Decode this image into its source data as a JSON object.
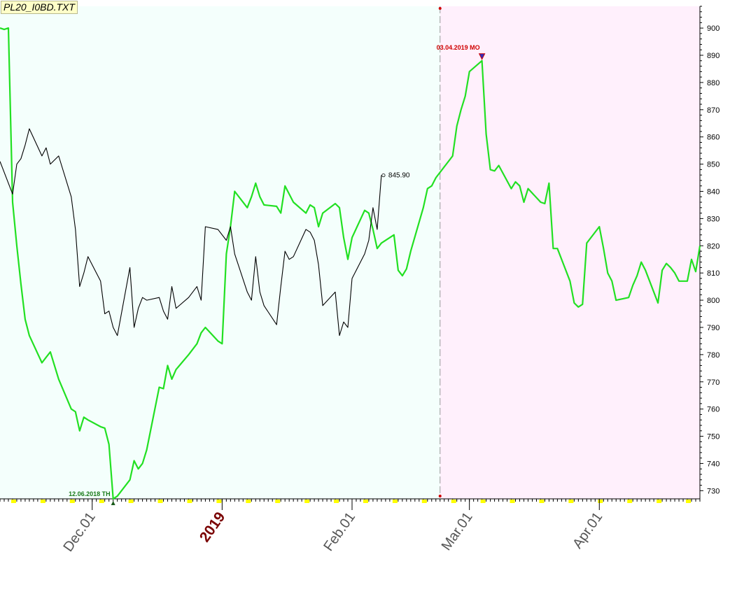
{
  "title": "PL20_I0BD.TXT",
  "colors": {
    "past_bg": "#f4fffc",
    "future_bg": "#fff0fc",
    "forecast_line": "#22e022",
    "price_line": "#000000",
    "marker_red": "#d00000",
    "low_label": "#1a7a1a",
    "year_label": "#7a0000"
  },
  "chart_data": {
    "type": "line",
    "title": "PL20_I0BD.TXT",
    "x_labels": [
      "Dec.01",
      "2019",
      "Feb.01",
      "Mar.01",
      "Apr.01"
    ],
    "ylim": [
      727,
      908
    ],
    "y_ticks": [
      730,
      740,
      750,
      760,
      770,
      780,
      790,
      800,
      810,
      820,
      830,
      840,
      850,
      860,
      870,
      880,
      890,
      900
    ],
    "date_range": [
      "2018-11-09",
      "2019-04-25"
    ],
    "divider_date": "2019-02-22",
    "series": [
      {
        "role": "forecast",
        "points": [
          [
            "2018-11-09",
            900
          ],
          [
            "2018-11-10",
            899.5
          ],
          [
            "2018-11-11",
            900
          ],
          [
            "2018-11-12",
            836
          ],
          [
            "2018-11-13",
            820
          ],
          [
            "2018-11-14",
            806
          ],
          [
            "2018-11-15",
            793
          ],
          [
            "2018-11-16",
            787
          ],
          [
            "2018-11-19",
            777
          ],
          [
            "2018-11-20",
            779
          ],
          [
            "2018-11-21",
            781
          ],
          [
            "2018-11-23",
            771
          ],
          [
            "2018-11-26",
            760
          ],
          [
            "2018-11-27",
            759
          ],
          [
            "2018-11-28",
            752
          ],
          [
            "2018-11-29",
            757
          ],
          [
            "2018-11-30",
            756
          ],
          [
            "2018-12-03",
            753.5
          ],
          [
            "2018-12-04",
            753
          ],
          [
            "2018-12-05",
            747
          ],
          [
            "2018-12-06",
            727
          ],
          [
            "2018-12-07",
            728
          ],
          [
            "2018-12-10",
            734
          ],
          [
            "2018-12-11",
            741
          ],
          [
            "2018-12-12",
            738
          ],
          [
            "2018-12-13",
            740
          ],
          [
            "2018-12-14",
            745
          ],
          [
            "2018-12-17",
            768
          ],
          [
            "2018-12-18",
            767.5
          ],
          [
            "2018-12-19",
            776
          ],
          [
            "2018-12-20",
            771
          ],
          [
            "2018-12-21",
            774.5
          ],
          [
            "2018-12-24",
            780
          ],
          [
            "2018-12-26",
            784
          ],
          [
            "2018-12-27",
            788
          ],
          [
            "2018-12-28",
            790
          ],
          [
            "2018-12-31",
            785
          ],
          [
            "2019-01-01",
            784
          ],
          [
            "2019-01-02",
            817
          ],
          [
            "2019-01-03",
            827
          ],
          [
            "2019-01-04",
            840
          ],
          [
            "2019-01-07",
            834
          ],
          [
            "2019-01-08",
            838
          ],
          [
            "2019-01-09",
            843
          ],
          [
            "2019-01-10",
            838
          ],
          [
            "2019-01-11",
            835
          ],
          [
            "2019-01-14",
            834.5
          ],
          [
            "2019-01-15",
            832
          ],
          [
            "2019-01-16",
            842
          ],
          [
            "2019-01-17",
            839
          ],
          [
            "2019-01-18",
            836
          ],
          [
            "2019-01-21",
            832
          ],
          [
            "2019-01-22",
            835
          ],
          [
            "2019-01-23",
            834
          ],
          [
            "2019-01-24",
            827
          ],
          [
            "2019-01-25",
            832
          ],
          [
            "2019-01-28",
            835.5
          ],
          [
            "2019-01-29",
            834
          ],
          [
            "2019-01-30",
            823
          ],
          [
            "2019-01-31",
            815
          ],
          [
            "2019-02-01",
            823
          ],
          [
            "2019-02-04",
            833
          ],
          [
            "2019-02-05",
            832
          ],
          [
            "2019-02-06",
            826
          ],
          [
            "2019-02-07",
            819
          ],
          [
            "2019-02-08",
            821
          ],
          [
            "2019-02-11",
            824
          ],
          [
            "2019-02-12",
            811
          ],
          [
            "2019-02-13",
            809
          ],
          [
            "2019-02-14",
            811.5
          ],
          [
            "2019-02-15",
            818
          ],
          [
            "2019-02-18",
            834
          ],
          [
            "2019-02-19",
            841
          ],
          [
            "2019-02-20",
            842
          ],
          [
            "2019-02-21",
            845
          ],
          [
            "2019-02-25",
            853
          ],
          [
            "2019-02-26",
            864
          ],
          [
            "2019-02-27",
            870
          ],
          [
            "2019-02-28",
            875
          ],
          [
            "2019-03-01",
            884
          ],
          [
            "2019-03-04",
            888
          ],
          [
            "2019-03-05",
            861
          ],
          [
            "2019-03-06",
            848
          ],
          [
            "2019-03-07",
            847.5
          ],
          [
            "2019-03-08",
            849.5
          ],
          [
            "2019-03-11",
            841
          ],
          [
            "2019-03-12",
            843.5
          ],
          [
            "2019-03-13",
            842
          ],
          [
            "2019-03-14",
            836
          ],
          [
            "2019-03-15",
            841
          ],
          [
            "2019-03-18",
            836
          ],
          [
            "2019-03-19",
            835.5
          ],
          [
            "2019-03-20",
            843
          ],
          [
            "2019-03-21",
            819
          ],
          [
            "2019-03-22",
            819
          ],
          [
            "2019-03-25",
            807
          ],
          [
            "2019-03-26",
            799
          ],
          [
            "2019-03-27",
            797.5
          ],
          [
            "2019-03-28",
            798.5
          ],
          [
            "2019-03-29",
            821
          ],
          [
            "2019-04-01",
            827
          ],
          [
            "2019-04-02",
            819
          ],
          [
            "2019-04-03",
            810
          ],
          [
            "2019-04-04",
            807
          ],
          [
            "2019-04-05",
            800
          ],
          [
            "2019-04-08",
            801
          ],
          [
            "2019-04-09",
            805.5
          ],
          [
            "2019-04-10",
            809
          ],
          [
            "2019-04-11",
            814
          ],
          [
            "2019-04-12",
            811
          ],
          [
            "2019-04-15",
            799
          ],
          [
            "2019-04-16",
            811
          ],
          [
            "2019-04-17",
            813.5
          ],
          [
            "2019-04-18",
            812
          ],
          [
            "2019-04-19",
            810
          ],
          [
            "2019-04-20",
            807
          ],
          [
            "2019-04-22",
            807
          ],
          [
            "2019-04-23",
            815
          ],
          [
            "2019-04-24",
            810.5
          ],
          [
            "2019-04-25",
            820
          ]
        ]
      },
      {
        "role": "price",
        "points": [
          [
            "2018-11-09",
            851
          ],
          [
            "2018-11-12",
            839
          ],
          [
            "2018-11-13",
            850
          ],
          [
            "2018-11-14",
            852
          ],
          [
            "2018-11-15",
            857
          ],
          [
            "2018-11-16",
            863
          ],
          [
            "2018-11-19",
            853
          ],
          [
            "2018-11-20",
            856
          ],
          [
            "2018-11-21",
            850
          ],
          [
            "2018-11-23",
            853
          ],
          [
            "2018-11-26",
            838
          ],
          [
            "2018-11-27",
            826
          ],
          [
            "2018-11-28",
            805
          ],
          [
            "2018-11-29",
            810
          ],
          [
            "2018-11-30",
            816
          ],
          [
            "2018-12-03",
            807
          ],
          [
            "2018-12-04",
            795
          ],
          [
            "2018-12-05",
            796
          ],
          [
            "2018-12-06",
            790
          ],
          [
            "2018-12-07",
            787
          ],
          [
            "2018-12-10",
            812
          ],
          [
            "2018-12-11",
            790
          ],
          [
            "2018-12-12",
            797
          ],
          [
            "2018-12-13",
            801
          ],
          [
            "2018-12-14",
            800
          ],
          [
            "2018-12-17",
            801
          ],
          [
            "2018-12-18",
            796
          ],
          [
            "2018-12-19",
            793
          ],
          [
            "2018-12-20",
            805
          ],
          [
            "2018-12-21",
            797
          ],
          [
            "2018-12-24",
            801
          ],
          [
            "2018-12-26",
            805
          ],
          [
            "2018-12-27",
            800
          ],
          [
            "2018-12-28",
            827
          ],
          [
            "2018-12-31",
            826
          ],
          [
            "2019-01-02",
            822
          ],
          [
            "2019-01-03",
            827
          ],
          [
            "2019-01-04",
            817
          ],
          [
            "2019-01-07",
            803
          ],
          [
            "2019-01-08",
            800
          ],
          [
            "2019-01-09",
            816
          ],
          [
            "2019-01-10",
            803
          ],
          [
            "2019-01-11",
            798
          ],
          [
            "2019-01-14",
            791
          ],
          [
            "2019-01-15",
            805
          ],
          [
            "2019-01-16",
            818
          ],
          [
            "2019-01-17",
            815
          ],
          [
            "2019-01-18",
            816
          ],
          [
            "2019-01-21",
            826
          ],
          [
            "2019-01-22",
            825
          ],
          [
            "2019-01-23",
            822
          ],
          [
            "2019-01-24",
            813
          ],
          [
            "2019-01-25",
            798
          ],
          [
            "2019-01-28",
            803
          ],
          [
            "2019-01-29",
            787
          ],
          [
            "2019-01-30",
            792
          ],
          [
            "2019-01-31",
            790
          ],
          [
            "2019-02-01",
            808
          ],
          [
            "2019-02-04",
            817
          ],
          [
            "2019-02-05",
            822
          ],
          [
            "2019-02-06",
            834
          ],
          [
            "2019-02-07",
            826
          ],
          [
            "2019-02-08",
            845.9
          ]
        ]
      }
    ],
    "annotations": [
      {
        "text": "12.06.2018 TH",
        "date": "2018-12-06",
        "value": 727,
        "kind": "low"
      },
      {
        "text": "03.04.2019 MO",
        "date": "2019-03-04",
        "value": 888,
        "kind": "high"
      },
      {
        "text": "845.90",
        "date": "2019-02-08",
        "value": 845.9,
        "kind": "last_price"
      }
    ]
  }
}
